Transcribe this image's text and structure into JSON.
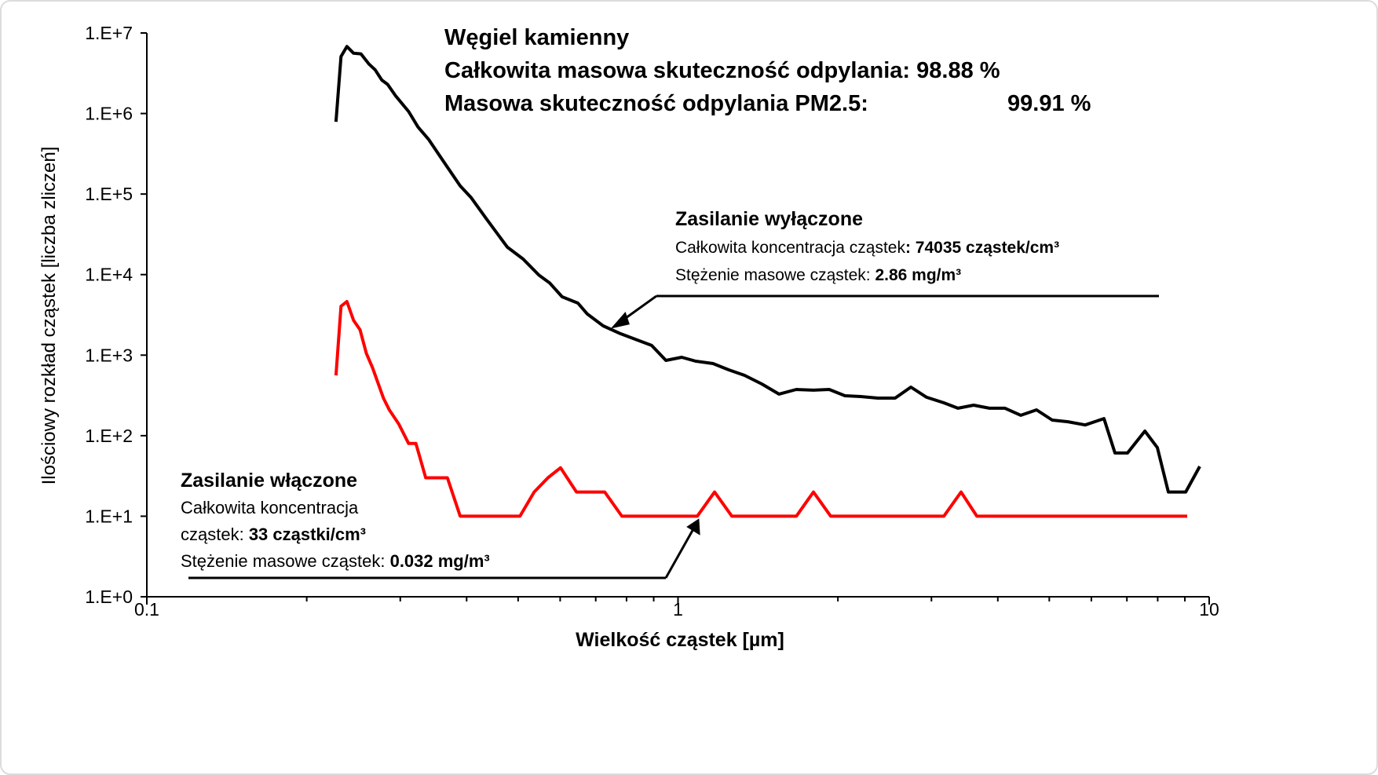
{
  "chart_data": {
    "type": "line",
    "title_lines": [
      [
        {
          "text": "Węgiel kamienny",
          "bold": true
        }
      ],
      [
        {
          "text": "Całkowita masowa skuteczność odpylania: 98.88 %",
          "bold": true
        }
      ],
      [
        {
          "text": "Masowa skuteczność odpylania PM2.5:",
          "bold": true
        },
        {
          "text": "99.91 %",
          "bold": true
        }
      ]
    ],
    "x_label": "Wielkość cząstek [µm]",
    "y_label": "Ilościowy rozkład cząstek [liczba zliczeń]",
    "log_x": true,
    "log_y": true,
    "xlim": [
      0.1,
      10
    ],
    "xticks": [
      0.1,
      1,
      10
    ],
    "x_minor_ticks": [
      0.2,
      0.3,
      0.4,
      0.5,
      0.6,
      0.7,
      0.8,
      0.9,
      2,
      3,
      4,
      5,
      6,
      7,
      8,
      9
    ],
    "ylim": [
      1,
      10000000
    ],
    "yticks": [
      {
        "value": 1,
        "label": "1.E+0"
      },
      {
        "value": 10,
        "label": "1.E+1"
      },
      {
        "value": 100,
        "label": "1.E+2"
      },
      {
        "value": 1000,
        "label": "1.E+3"
      },
      {
        "value": 10000,
        "label": "1.E+4"
      },
      {
        "value": 100000,
        "label": "1.E+5"
      },
      {
        "value": 1000000,
        "label": "1.E+6"
      },
      {
        "value": 10000000,
        "label": "1.E+7"
      }
    ],
    "series": [
      {
        "name": "Zasilanie wyłączone",
        "color": "#000000",
        "x": [
          0.227,
          0.232,
          0.238,
          0.245,
          0.253,
          0.262,
          0.269,
          0.277,
          0.284,
          0.294,
          0.311,
          0.324,
          0.339,
          0.363,
          0.389,
          0.408,
          0.437,
          0.477,
          0.511,
          0.547,
          0.573,
          0.605,
          0.648,
          0.675,
          0.723,
          0.779,
          0.839,
          0.892,
          0.949,
          1.016,
          1.08,
          1.164,
          1.246,
          1.334,
          1.438,
          1.549,
          1.67,
          1.799,
          1.926,
          2.062,
          2.207,
          2.378,
          2.563,
          2.744,
          2.937,
          3.166,
          3.365,
          3.602,
          3.857,
          4.128,
          4.419,
          4.731,
          5.065,
          5.42,
          5.842,
          6.337,
          6.646,
          7.02,
          7.566,
          7.989,
          8.379,
          9.031,
          9.601
        ],
        "values": [
          790000,
          5100000,
          6800000,
          5600000,
          5500000,
          4100000,
          3500000,
          2600000,
          2300000,
          1660000,
          1060000,
          680000,
          480000,
          246000,
          126000,
          90000,
          48000,
          22000,
          15600,
          9900,
          7900,
          5300,
          4430,
          3240,
          2310,
          1850,
          1540,
          1320,
          860,
          940,
          841,
          787,
          657,
          562,
          439,
          328,
          375,
          367,
          375,
          313,
          306,
          293,
          293,
          401,
          300,
          256,
          219,
          239,
          219,
          219,
          179,
          209,
          156,
          149,
          136,
          163,
          61,
          61,
          114,
          71,
          20,
          20,
          41.5
        ]
      },
      {
        "name": "Zasilanie włączone",
        "color": "#ff0000",
        "x": [
          0.227,
          0.232,
          0.238,
          0.245,
          0.252,
          0.259,
          0.266,
          0.279,
          0.286,
          0.298,
          0.311,
          0.321,
          0.335,
          0.368,
          0.389,
          0.504,
          0.536,
          0.569,
          0.601,
          0.644,
          0.728,
          0.784,
          1.087,
          1.172,
          1.263,
          1.67,
          1.799,
          1.939,
          3.166,
          3.411,
          3.652,
          9.09
        ],
        "values": [
          560,
          4050,
          4630,
          2700,
          2070,
          1050,
          700,
          290,
          210,
          140,
          80,
          80,
          30,
          30,
          10,
          10,
          20,
          30,
          40,
          20,
          20,
          10,
          10,
          20,
          10,
          10,
          20,
          10,
          10,
          20,
          10,
          10
        ]
      }
    ],
    "annotations": [
      {
        "series": 0,
        "lines": [
          [
            {
              "text": "Całkowita koncentracja cząstek"
            },
            {
              "text": ": 74035 cząstek/cm³",
              "bold": true
            }
          ],
          [
            {
              "text": "Stężenie masowe cząstek: "
            },
            {
              "text": "2.86 mg/m³",
              "bold": true
            }
          ]
        ]
      },
      {
        "series": 1,
        "lines": [
          [
            {
              "text": "Całkowita koncentracja"
            }
          ],
          [
            {
              "text": "cząstek: "
            },
            {
              "text": "33 cząstki/cm³",
              "bold": true
            }
          ],
          [
            {
              "text": "Stężenie masowe cząstek: "
            },
            {
              "text": "0.032 mg/m³",
              "bold": true
            }
          ]
        ]
      }
    ]
  }
}
